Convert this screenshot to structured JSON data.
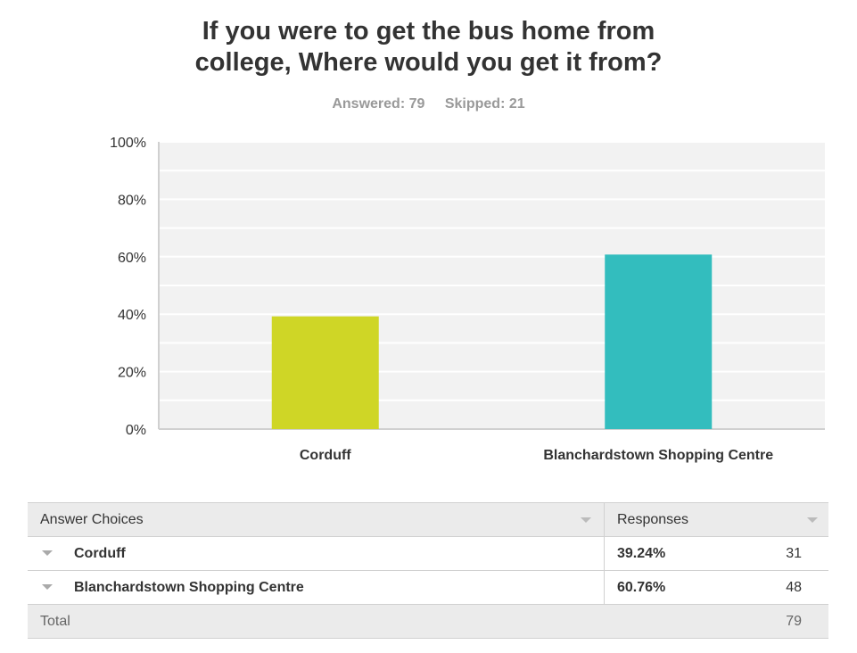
{
  "title_line1": "If you were to get the bus home from",
  "title_line2": "college, Where would you get it from?",
  "answered": "Answered: 79",
  "skipped": "Skipped: 21",
  "chart_data": {
    "type": "bar",
    "categories": [
      "Corduff",
      "Blanchardstown Shopping Centre"
    ],
    "values": [
      39.24,
      60.76
    ],
    "ylim": [
      0,
      100
    ],
    "yticks": [
      0,
      20,
      40,
      60,
      80,
      100
    ],
    "ytick_labels": [
      "0%",
      "20%",
      "40%",
      "60%",
      "80%",
      "100%"
    ],
    "grid": true,
    "colors": [
      "#cfd626",
      "#33bdbe"
    ]
  },
  "table": {
    "header_choice": "Answer Choices",
    "header_responses": "Responses",
    "rows": [
      {
        "choice": "Corduff",
        "percent": "39.24%",
        "count": "31"
      },
      {
        "choice": "Blanchardstown Shopping Centre",
        "percent": "60.76%",
        "count": "48"
      }
    ],
    "total_label": "Total",
    "total_count": "79"
  }
}
